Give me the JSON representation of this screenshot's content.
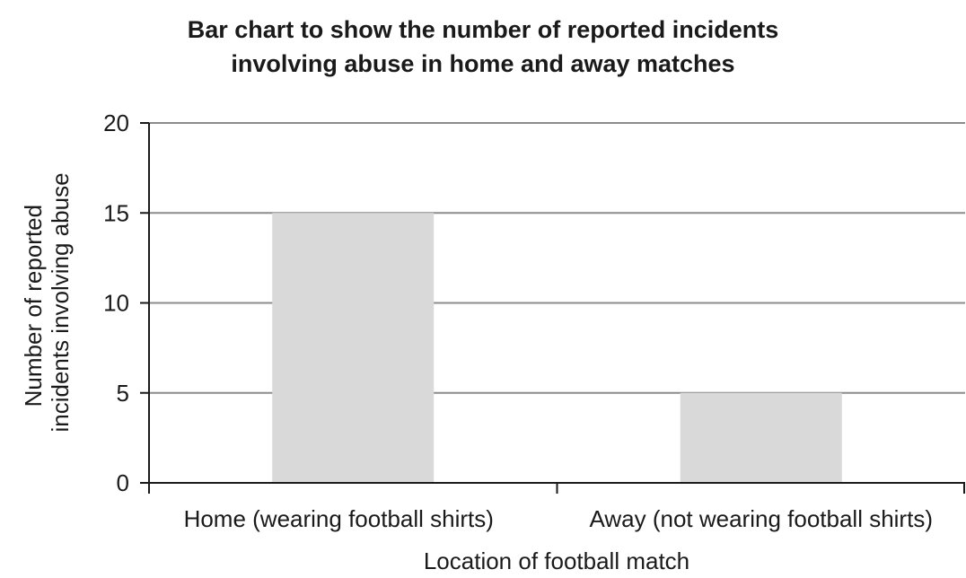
{
  "chart_data": {
    "type": "bar",
    "title": "Bar chart to show the number of reported incidents\ninvolving abuse in home and away matches",
    "categories": [
      "Home (wearing football shirts)",
      "Away (not wearing football shirts)"
    ],
    "values": [
      15,
      5
    ],
    "xlabel": "Location of football match",
    "ylabel_lines": [
      "Number of reported",
      "incidents involving abuse"
    ],
    "ylim": [
      0,
      20
    ],
    "yticks": [
      0,
      5,
      10,
      15,
      20
    ],
    "grid": true,
    "legend": "none",
    "colors": {
      "bar": "#d9d9d9",
      "grid": "#8c8c8c",
      "axis": "#1a1a1a"
    }
  }
}
